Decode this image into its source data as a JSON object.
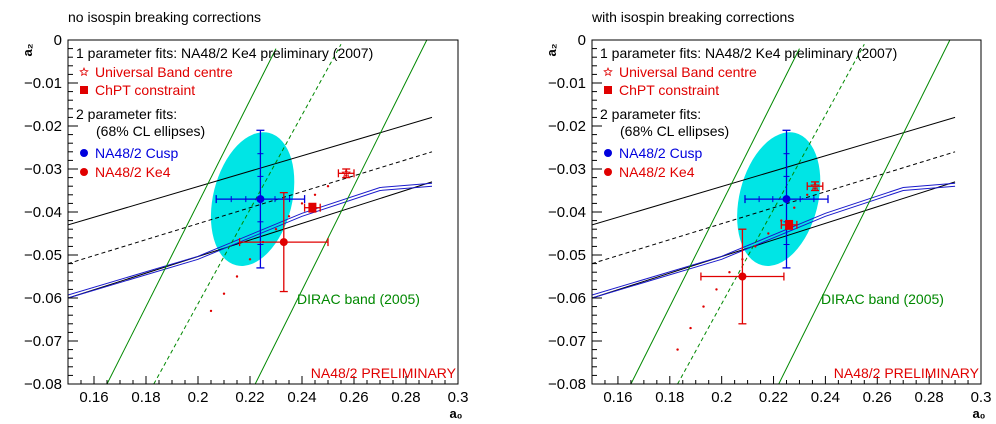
{
  "figure": {
    "preliminary_label": "NA48/2 PRELIMINARY",
    "dirac_label": "DIRAC band (2005)"
  },
  "chart_data": [
    {
      "type": "scatter",
      "title": "no isospin breaking corrections",
      "xlabel": "a₀",
      "ylabel": "a₂",
      "xlim": [
        0.15,
        0.3
      ],
      "ylim": [
        -0.08,
        0.0
      ],
      "xticks": [
        "0.16",
        "0.18",
        "0.2",
        "0.22",
        "0.24",
        "0.26",
        "0.28",
        "0.3"
      ],
      "yticks": [
        "0",
        "−0.01",
        "−0.02",
        "−0.03",
        "−0.04",
        "−0.05",
        "−0.06",
        "−0.07",
        "−0.08"
      ],
      "legend": {
        "header1": "1 parameter fits: NA48/2 Ke4 preliminary (2007)",
        "item_ub": "Universal Band centre",
        "item_chpt": "ChPT constraint",
        "header2": "2 parameter fits:",
        "header2b": "(68% CL ellipses)",
        "item_cusp": "NA48/2 Cusp",
        "item_ke4": "NA48/2 Ke4"
      },
      "colors": {
        "ellipse": "#00e5e5",
        "cusp": "#0000dd",
        "ke4": "#e00000",
        "dirac": "#008800",
        "band": "#000000",
        "chpt_curve": "#1a1acc"
      },
      "cusp": {
        "x": 0.224,
        "y": -0.037,
        "xerr": 0.017,
        "yerr": 0.016
      },
      "ke4": {
        "x": 0.233,
        "y": -0.047,
        "xerr": 0.017,
        "yerr": 0.0115
      },
      "chpt": {
        "x": 0.244,
        "y": -0.039,
        "xerr": 0.003,
        "yerr": 0.001
      },
      "ub_centre": {
        "x": 0.257,
        "y": -0.031,
        "xerr": 0.003,
        "yerr": 0.001
      },
      "ellipse": {
        "cx": 0.221,
        "cy": -0.037,
        "semi_major": 0.0305,
        "semi_minor": 0.0205
      },
      "dotted_curve": [
        [
          0.205,
          -0.063
        ],
        [
          0.21,
          -0.059
        ],
        [
          0.215,
          -0.055
        ],
        [
          0.22,
          -0.051
        ],
        [
          0.225,
          -0.047
        ],
        [
          0.23,
          -0.044
        ],
        [
          0.235,
          -0.041
        ],
        [
          0.24,
          -0.038
        ],
        [
          0.245,
          -0.036
        ],
        [
          0.25,
          -0.034
        ]
      ],
      "band_lines": {
        "upper": [
          [
            0.15,
            -0.043
          ],
          [
            0.29,
            -0.018
          ]
        ],
        "center": [
          [
            0.15,
            -0.052
          ],
          [
            0.29,
            -0.026
          ]
        ],
        "lower": [
          [
            0.15,
            -0.06
          ],
          [
            0.29,
            -0.033
          ]
        ]
      },
      "chpt_curve": [
        [
          0.15,
          -0.06
        ],
        [
          0.2,
          -0.051
        ],
        [
          0.24,
          -0.041
        ],
        [
          0.27,
          -0.035
        ],
        [
          0.29,
          -0.034
        ]
      ],
      "dirac_lines": {
        "left": [
          [
            0.165,
            -0.08
          ],
          [
            0.23,
            -0.002
          ]
        ],
        "right": [
          [
            0.222,
            -0.08
          ],
          [
            0.288,
            0.0
          ]
        ],
        "dashed": [
          [
            0.183,
            -0.08
          ],
          [
            0.255,
            -0.001
          ]
        ]
      }
    },
    {
      "type": "scatter",
      "title": "with isospin breaking corrections",
      "xlabel": "a₀",
      "ylabel": "a₂",
      "xlim": [
        0.15,
        0.3
      ],
      "ylim": [
        -0.08,
        0.0
      ],
      "xticks": [
        "0.16",
        "0.18",
        "0.2",
        "0.22",
        "0.24",
        "0.26",
        "0.28",
        "0.3"
      ],
      "yticks": [
        "0",
        "−0.01",
        "−0.02",
        "−0.03",
        "−0.04",
        "−0.05",
        "−0.06",
        "−0.07",
        "−0.08"
      ],
      "legend": {
        "header1": "1 parameter fits: NA48/2 Ke4 preliminary (2007)",
        "item_ub": "Universal Band centre",
        "item_chpt": "ChPT constraint",
        "header2": "2 parameter fits:",
        "header2b": "(68% CL ellipses)",
        "item_cusp": "NA48/2 Cusp",
        "item_ke4": "NA48/2 Ke4"
      },
      "colors": {
        "ellipse": "#00e5e5",
        "cusp": "#0000dd",
        "ke4": "#e00000",
        "dirac": "#008800",
        "band": "#000000",
        "chpt_curve": "#1a1acc"
      },
      "cusp": {
        "x": 0.225,
        "y": -0.037,
        "xerr": 0.016,
        "yerr": 0.016
      },
      "ke4": {
        "x": 0.208,
        "y": -0.055,
        "xerr": 0.016,
        "yerr": 0.011
      },
      "chpt": {
        "x": 0.226,
        "y": -0.043,
        "xerr": 0.003,
        "yerr": 0.001
      },
      "ub_centre": {
        "x": 0.236,
        "y": -0.034,
        "xerr": 0.003,
        "yerr": 0.001
      },
      "ellipse": {
        "cx": 0.222,
        "cy": -0.037,
        "semi_major": 0.0305,
        "semi_minor": 0.0205
      },
      "dotted_curve": [
        [
          0.183,
          -0.072
        ],
        [
          0.188,
          -0.067
        ],
        [
          0.193,
          -0.062
        ],
        [
          0.198,
          -0.058
        ],
        [
          0.203,
          -0.054
        ],
        [
          0.208,
          -0.051
        ],
        [
          0.213,
          -0.048
        ],
        [
          0.218,
          -0.045
        ],
        [
          0.223,
          -0.042
        ],
        [
          0.228,
          -0.039
        ],
        [
          0.233,
          -0.036
        ]
      ],
      "band_lines": {
        "upper": [
          [
            0.15,
            -0.043
          ],
          [
            0.29,
            -0.018
          ]
        ],
        "center": [
          [
            0.15,
            -0.052
          ],
          [
            0.29,
            -0.026
          ]
        ],
        "lower": [
          [
            0.15,
            -0.06
          ],
          [
            0.29,
            -0.033
          ]
        ]
      },
      "chpt_curve": [
        [
          0.15,
          -0.06
        ],
        [
          0.2,
          -0.051
        ],
        [
          0.24,
          -0.041
        ],
        [
          0.27,
          -0.035
        ],
        [
          0.29,
          -0.034
        ]
      ],
      "dirac_lines": {
        "left": [
          [
            0.165,
            -0.08
          ],
          [
            0.23,
            -0.002
          ]
        ],
        "right": [
          [
            0.222,
            -0.08
          ],
          [
            0.288,
            0.0
          ]
        ],
        "dashed": [
          [
            0.183,
            -0.08
          ],
          [
            0.255,
            -0.001
          ]
        ]
      }
    }
  ]
}
